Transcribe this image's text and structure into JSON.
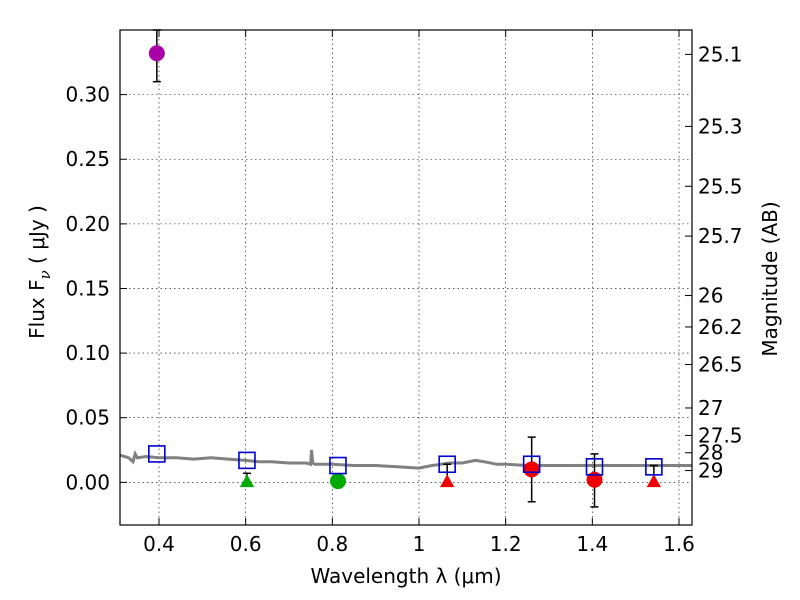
{
  "chart_data": {
    "type": "scatter",
    "xlabel": "Wavelength  λ (μm)",
    "ylabel": "Flux  F",
    "ylabel_sub": "ν",
    "ylabel_unit": " ( μJy )",
    "y2label": "Magnitude (AB)",
    "xlim": [
      0.31,
      1.63
    ],
    "ylim": [
      -0.033,
      0.35
    ],
    "grid": true,
    "x_ticks": [
      {
        "v": 0.4,
        "label": "0.4"
      },
      {
        "v": 0.6,
        "label": "0.6"
      },
      {
        "v": 0.8,
        "label": "0.8"
      },
      {
        "v": 1.0,
        "label": "1"
      },
      {
        "v": 1.2,
        "label": "1.2"
      },
      {
        "v": 1.4,
        "label": "1.4"
      },
      {
        "v": 1.6,
        "label": "1.6"
      }
    ],
    "y_ticks": [
      {
        "v": 0.0,
        "label": "0.00"
      },
      {
        "v": 0.05,
        "label": "0.05"
      },
      {
        "v": 0.1,
        "label": "0.10"
      },
      {
        "v": 0.15,
        "label": "0.15"
      },
      {
        "v": 0.2,
        "label": "0.20"
      },
      {
        "v": 0.25,
        "label": "0.25"
      },
      {
        "v": 0.3,
        "label": "0.30"
      }
    ],
    "mag_ticks": [
      "25.1",
      "25.3",
      "25.5",
      "25.7",
      "26",
      "26.2",
      "26.5",
      "27",
      "27.5",
      "28",
      "29"
    ],
    "model_sed": {
      "name": "model SED",
      "color": "#808080",
      "x": [
        0.31,
        0.33,
        0.34,
        0.345,
        0.35,
        0.37,
        0.4,
        0.44,
        0.48,
        0.52,
        0.56,
        0.6,
        0.63,
        0.66,
        0.7,
        0.74,
        0.75,
        0.752,
        0.755,
        0.76,
        0.8,
        0.85,
        0.9,
        0.95,
        1.0,
        1.03,
        1.05,
        1.07,
        1.1,
        1.13,
        1.15,
        1.18,
        1.2,
        1.25,
        1.3,
        1.35,
        1.4,
        1.45,
        1.5,
        1.55,
        1.6,
        1.63
      ],
      "y": [
        0.021,
        0.019,
        0.016,
        0.022,
        0.019,
        0.02,
        0.019,
        0.019,
        0.018,
        0.019,
        0.018,
        0.017,
        0.016,
        0.016,
        0.015,
        0.015,
        0.014,
        0.025,
        0.015,
        0.014,
        0.014,
        0.013,
        0.013,
        0.012,
        0.011,
        0.013,
        0.014,
        0.015,
        0.015,
        0.017,
        0.016,
        0.014,
        0.014,
        0.013,
        0.013,
        0.013,
        0.013,
        0.013,
        0.013,
        0.013,
        0.013,
        0.013
      ]
    },
    "model_points": {
      "name": "model photometry",
      "color": "#0000cc",
      "marker": "open-square",
      "x": [
        0.395,
        0.603,
        0.813,
        1.065,
        1.26,
        1.405,
        1.542
      ],
      "y": [
        0.022,
        0.017,
        0.013,
        0.014,
        0.014,
        0.012,
        0.012
      ]
    },
    "observations": [
      {
        "x": 0.395,
        "y": 0.332,
        "yerr_low": 0.022,
        "yerr_high": 0.018,
        "marker": "circle",
        "color": "#aa00aa"
      },
      {
        "x": 0.603,
        "y": 0.0,
        "yerr_low": 0.0,
        "yerr_high": 0.007,
        "marker": "triangle",
        "color": "#00aa00"
      },
      {
        "x": 0.813,
        "y": 0.001,
        "yerr_low": 0.005,
        "yerr_high": 0.005,
        "marker": "circle",
        "color": "#00aa00"
      },
      {
        "x": 1.065,
        "y": 0.0,
        "yerr_low": 0.0,
        "yerr_high": 0.014,
        "marker": "triangle",
        "color": "#ee0000"
      },
      {
        "x": 1.26,
        "y": 0.01,
        "yerr_low": 0.025,
        "yerr_high": 0.025,
        "marker": "circle",
        "color": "#ee0000"
      },
      {
        "x": 1.405,
        "y": 0.002,
        "yerr_low": 0.021,
        "yerr_high": 0.02,
        "marker": "circle",
        "color": "#ee0000"
      },
      {
        "x": 1.542,
        "y": 0.0,
        "yerr_low": 0.0,
        "yerr_high": 0.013,
        "marker": "triangle",
        "color": "#ee0000"
      }
    ]
  }
}
